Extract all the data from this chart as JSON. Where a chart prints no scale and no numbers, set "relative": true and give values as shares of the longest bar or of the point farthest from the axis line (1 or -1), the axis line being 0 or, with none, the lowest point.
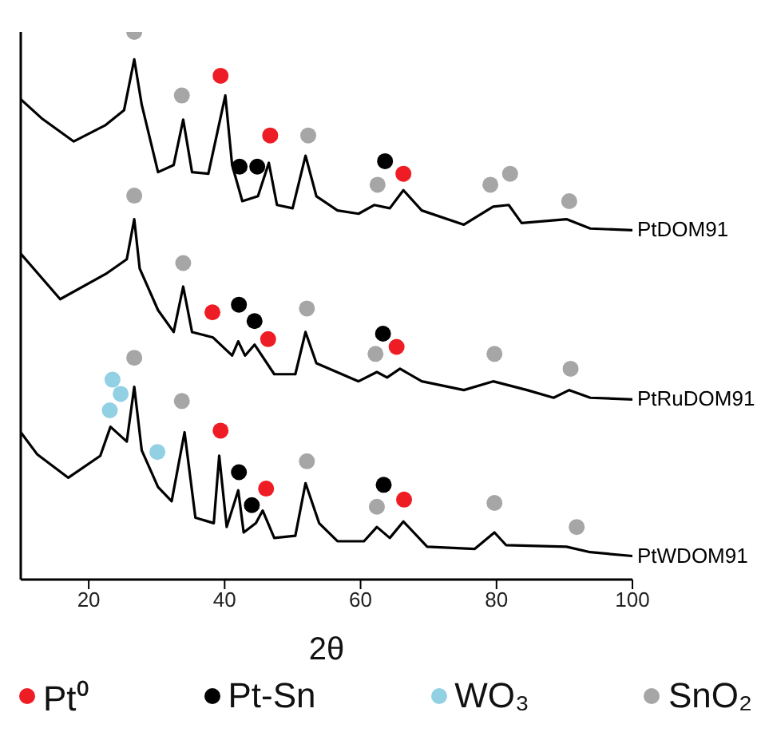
{
  "chart_data": {
    "type": "line",
    "relative": true,
    "xlabel": "2θ",
    "xlim": [
      10,
      100
    ],
    "xticks": [
      20,
      40,
      60,
      80,
      100
    ],
    "legend": "bottom",
    "series": [
      {
        "name": "PtDOM91",
        "color": "#000000",
        "x": [
          10,
          13.2,
          17.8,
          22.5,
          25.2,
          26.7,
          27.8,
          30.2,
          32.5,
          33.9,
          35.2,
          37.6,
          40.1,
          41.1,
          42.6,
          44.9,
          46.5,
          47.7,
          50.0,
          51.9,
          53.5,
          56.6,
          59.7,
          62.0,
          64.3,
          66.3,
          69.0,
          75.2,
          79.5,
          81.8,
          83.7,
          90.3,
          93.8,
          100
        ],
        "values": [
          0.877,
          0.841,
          0.8,
          0.83,
          0.857,
          0.95,
          0.867,
          0.744,
          0.757,
          0.84,
          0.744,
          0.741,
          0.884,
          0.757,
          0.691,
          0.7,
          0.761,
          0.684,
          0.678,
          0.774,
          0.7,
          0.674,
          0.668,
          0.684,
          0.678,
          0.711,
          0.674,
          0.648,
          0.681,
          0.684,
          0.651,
          0.658,
          0.641,
          0.638
        ]
      },
      {
        "name": "PtRuDOM91",
        "color": "#000000",
        "x": [
          10,
          15.8,
          22.5,
          25.6,
          26.7,
          27.5,
          30.2,
          32.5,
          33.9,
          35.2,
          38.3,
          41.1,
          42.0,
          43.0,
          44.4,
          47.3,
          50.4,
          51.9,
          53.5,
          59.7,
          62.4,
          63.9,
          65.8,
          69.0,
          75.2,
          79.5,
          84.5,
          88.4,
          90.7,
          93.8,
          100
        ],
        "values": [
          0.595,
          0.512,
          0.558,
          0.585,
          0.658,
          0.568,
          0.492,
          0.452,
          0.535,
          0.452,
          0.442,
          0.409,
          0.435,
          0.409,
          0.429,
          0.375,
          0.375,
          0.452,
          0.395,
          0.362,
          0.379,
          0.369,
          0.385,
          0.362,
          0.346,
          0.362,
          0.346,
          0.332,
          0.346,
          0.332,
          0.329
        ]
      },
      {
        "name": "PtWDOM91",
        "color": "#000000",
        "x": [
          10,
          12.4,
          17.0,
          21.7,
          23.2,
          25.6,
          26.7,
          27.8,
          30.2,
          32.2,
          34.1,
          35.7,
          38.4,
          39.2,
          40.3,
          42.0,
          42.8,
          44.6,
          45.6,
          47.3,
          50.4,
          51.9,
          53.9,
          56.6,
          60.5,
          62.4,
          64.3,
          66.3,
          69.8,
          76.8,
          79.7,
          81.4,
          90.3,
          93.8,
          100
        ],
        "values": [
          0.269,
          0.229,
          0.186,
          0.226,
          0.279,
          0.252,
          0.352,
          0.236,
          0.169,
          0.143,
          0.269,
          0.113,
          0.103,
          0.226,
          0.096,
          0.163,
          0.086,
          0.103,
          0.126,
          0.076,
          0.08,
          0.176,
          0.103,
          0.07,
          0.07,
          0.096,
          0.076,
          0.106,
          0.06,
          0.056,
          0.086,
          0.063,
          0.06,
          0.05,
          0.043
        ]
      },
      {
        "type": "scatter",
        "name": "Pt⁰",
        "color": "#ee1c25",
        "marker": "circle",
        "x": [
          39.4,
          46.7,
          66.3,
          38.2,
          46.4,
          65.3,
          39.4,
          46.1,
          66.4
        ],
        "values": [
          0.92,
          0.811,
          0.741,
          0.488,
          0.439,
          0.425,
          0.272,
          0.166,
          0.146
        ]
      },
      {
        "type": "scatter",
        "name": "Pt-Sn",
        "color": "#000000",
        "marker": "circle",
        "x": [
          42.2,
          44.8,
          63.6,
          42.1,
          44.4,
          63.3,
          42.1,
          44.0,
          63.4
        ],
        "values": [
          0.754,
          0.754,
          0.764,
          0.502,
          0.472,
          0.449,
          0.196,
          0.136,
          0.173
        ]
      },
      {
        "type": "scatter",
        "name": "WO₃",
        "color": "#92d0e4",
        "marker": "circle",
        "x": [
          23.5,
          24.7,
          23.1,
          30.1
        ],
        "values": [
          0.365,
          0.339,
          0.309,
          0.233
        ]
      },
      {
        "type": "scatter",
        "name": "SnO₂",
        "color": "#a6a6a6",
        "marker": "circle",
        "x": [
          26.7,
          33.7,
          52.3,
          62.5,
          79.1,
          82.0,
          90.7,
          26.7,
          33.9,
          52.1,
          62.2,
          79.7,
          90.9,
          26.7,
          33.7,
          52.1,
          62.4,
          79.7,
          91.8
        ],
        "values": [
          1.0,
          0.884,
          0.811,
          0.721,
          0.721,
          0.741,
          0.691,
          0.701,
          0.578,
          0.495,
          0.412,
          0.412,
          0.385,
          0.405,
          0.326,
          0.216,
          0.133,
          0.14,
          0.096
        ]
      }
    ]
  }
}
